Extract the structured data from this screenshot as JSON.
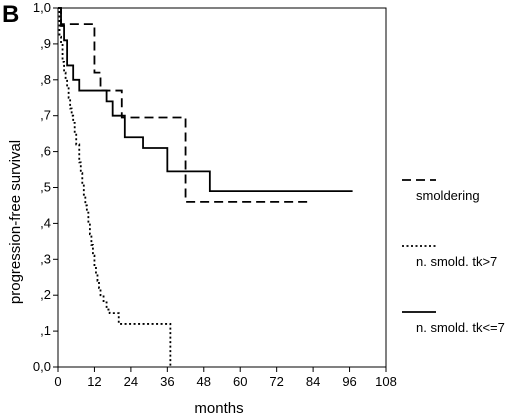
{
  "panel_label": "B",
  "chart_data": {
    "type": "line",
    "subtype": "kaplan-meier-step",
    "title": "",
    "xlabel": "months",
    "ylabel": "progression-free survival",
    "xlim": [
      0,
      108
    ],
    "ylim": [
      0,
      1
    ],
    "x_ticks": [
      0,
      12,
      24,
      36,
      48,
      60,
      72,
      84,
      96,
      108
    ],
    "x_tick_labels": [
      "0",
      "12",
      "24",
      "36",
      "48",
      "60",
      "72",
      "84",
      "96",
      "108"
    ],
    "y_ticks": [
      0,
      0.1,
      0.2,
      0.3,
      0.4,
      0.5,
      0.6,
      0.7,
      0.8,
      0.9,
      1.0
    ],
    "y_tick_labels": [
      "0,0",
      ",1",
      ",2",
      ",3",
      ",4",
      ",5",
      ",6",
      ",7",
      ",8",
      ",9",
      "1,0"
    ],
    "grid": false,
    "legend_position": "right",
    "series": [
      {
        "name": "smoldering",
        "style": "dashed",
        "x": [
          0,
          1,
          10,
          12,
          14,
          18,
          21,
          42,
          83
        ],
        "y": [
          1.0,
          0.955,
          0.955,
          0.82,
          0.77,
          0.77,
          0.695,
          0.46,
          0.46
        ]
      },
      {
        "name": "n. smold. tk>7",
        "style": "dotted",
        "x": [
          0,
          0.5,
          1,
          1.5,
          2,
          2.5,
          3,
          3.5,
          4,
          4.5,
          5,
          5.5,
          6,
          7,
          7.5,
          8,
          8.5,
          9,
          9.5,
          10,
          10.5,
          11,
          11.5,
          12,
          12.5,
          13,
          13.5,
          14,
          15,
          16,
          17,
          20,
          36,
          37
        ],
        "y": [
          1.0,
          0.92,
          0.9,
          0.85,
          0.82,
          0.8,
          0.78,
          0.75,
          0.72,
          0.7,
          0.68,
          0.65,
          0.62,
          0.57,
          0.54,
          0.51,
          0.48,
          0.45,
          0.43,
          0.4,
          0.37,
          0.34,
          0.31,
          0.28,
          0.26,
          0.24,
          0.22,
          0.2,
          0.18,
          0.16,
          0.15,
          0.12,
          0.12,
          0.0
        ]
      },
      {
        "name": "n. smold. tk<=7",
        "style": "solid",
        "x": [
          0,
          1,
          2,
          3,
          5,
          7,
          10,
          12,
          14,
          16,
          18,
          20,
          22,
          25,
          28,
          31,
          36,
          40,
          50,
          97
        ],
        "y": [
          1.0,
          0.95,
          0.91,
          0.84,
          0.8,
          0.77,
          0.77,
          0.77,
          0.77,
          0.74,
          0.7,
          0.7,
          0.64,
          0.64,
          0.61,
          0.61,
          0.545,
          0.545,
          0.49,
          0.49
        ]
      }
    ]
  }
}
